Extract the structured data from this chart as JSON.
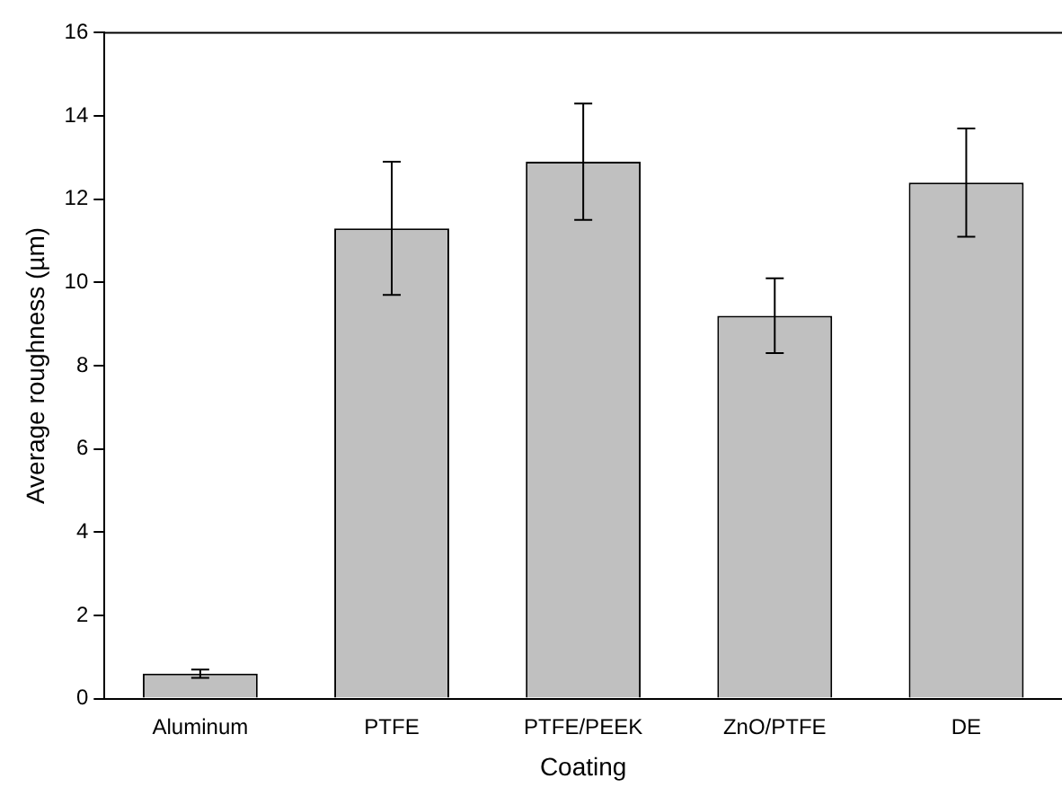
{
  "chart_data": {
    "type": "bar",
    "xlabel": "Coating",
    "ylabel": "Average roughness (µm)",
    "categories": [
      "Aluminum",
      "PTFE",
      "PTFE/PEEK",
      "ZnO/PTFE",
      "DE"
    ],
    "values": [
      0.6,
      11.3,
      12.9,
      9.2,
      12.4
    ],
    "errors": [
      [
        0.5,
        0.7
      ],
      [
        9.7,
        12.9
      ],
      [
        11.5,
        14.3
      ],
      [
        8.3,
        10.1
      ],
      [
        11.1,
        13.7
      ]
    ],
    "color": "#c0c0c0",
    "ylim": [
      0,
      16
    ],
    "yticks": [
      0,
      2,
      4,
      6,
      8,
      10,
      12,
      14,
      16
    ],
    "grid": false,
    "legend": false
  }
}
